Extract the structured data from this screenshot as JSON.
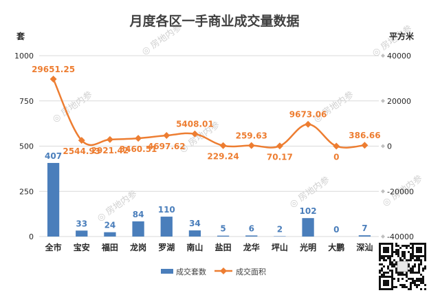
{
  "chart_data": {
    "type": "bar+line",
    "title": "月度各区一手商业成交量数据",
    "left_unit": "套",
    "right_unit": "平方米",
    "categories": [
      "全市",
      "宝安",
      "福田",
      "龙岗",
      "罗湖",
      "南山",
      "盐田",
      "龙华",
      "坪山",
      "光明",
      "大鹏",
      "深汕"
    ],
    "left_axis": {
      "min": 0,
      "max": 1000,
      "ticks": [
        0,
        250,
        500,
        750,
        1000
      ]
    },
    "right_axis": {
      "min": -40000,
      "max": 40000,
      "ticks": [
        -40000,
        -20000,
        0,
        20000,
        40000
      ]
    },
    "series": [
      {
        "name": "成交套数",
        "kind": "bar",
        "axis": "left",
        "color": "#4a7ebb",
        "values": [
          407,
          33,
          24,
          84,
          110,
          34,
          5,
          6,
          2,
          102,
          0,
          7
        ],
        "labels": [
          "407",
          "33",
          "24",
          "84",
          "110",
          "34",
          "5",
          "6",
          "2",
          "102",
          "0",
          "7"
        ]
      },
      {
        "name": "成交面积",
        "kind": "line",
        "axis": "right",
        "color": "#ed7d31",
        "values": [
          29651.25,
          2544.93,
          2921.42,
          3460.51,
          4697.62,
          5408.01,
          229.24,
          259.63,
          70.17,
          9673.06,
          0,
          386.66
        ],
        "labels": [
          "29651.25",
          "2544.93",
          "2921.42",
          "3460.51",
          "4697.62",
          "5408.01",
          "229.24",
          "259.63",
          "70.17",
          "9673.06",
          "0",
          "386.66"
        ]
      }
    ],
    "legend_position": "bottom",
    "watermark": "房地内参"
  }
}
